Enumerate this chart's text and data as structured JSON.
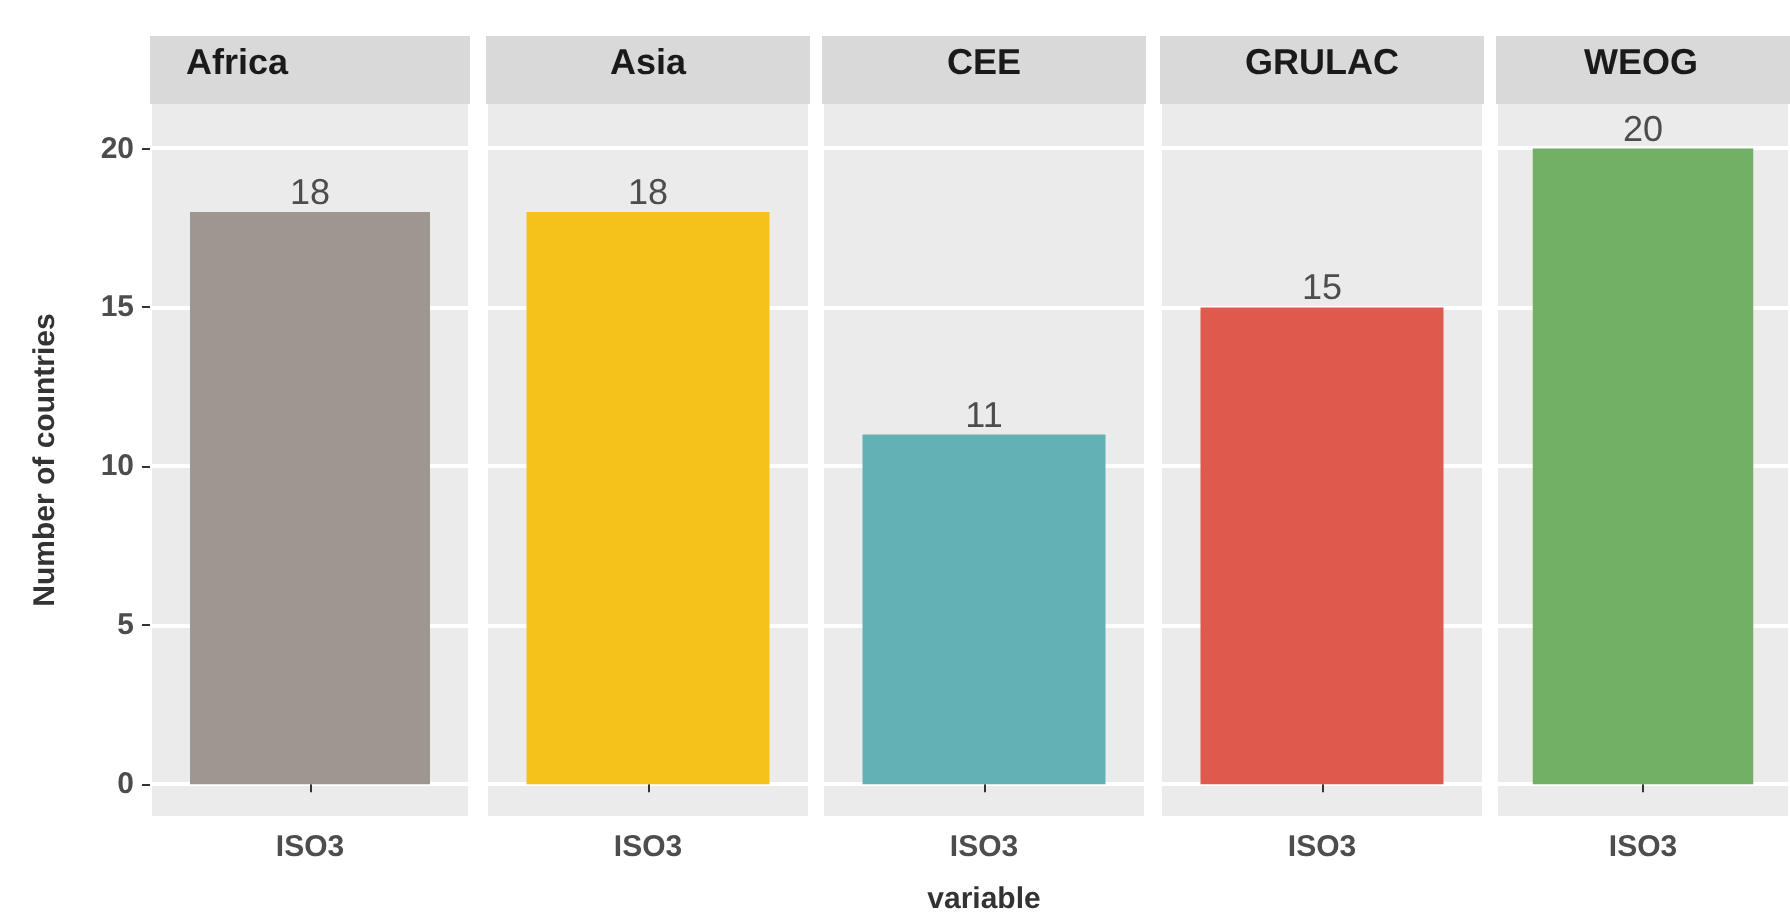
{
  "chart_data": [
    {
      "type": "bar",
      "title": "Africa",
      "categories": [
        "ISO3"
      ],
      "values": [
        18
      ],
      "color": "#9e9690",
      "ylabel": "Number of countries",
      "ylim": [
        -1,
        21.4
      ],
      "yticks": [
        0,
        5,
        10,
        15,
        20
      ],
      "grid": true,
      "data_labels": true
    },
    {
      "type": "bar",
      "title": "Asia",
      "categories": [
        "ISO3"
      ],
      "values": [
        18
      ],
      "color": "#f5c21b",
      "ylim": [
        -1,
        21.4
      ],
      "yticks": [
        0,
        5,
        10,
        15,
        20
      ],
      "grid": true,
      "data_labels": true,
      "tick_labels": "x"
    },
    {
      "type": "bar",
      "title": "CEE",
      "categories": [
        "ISO3"
      ],
      "values": [
        11
      ],
      "color": "#63b0b5",
      "xlabel": "variable",
      "ylim": [
        -1,
        21.4
      ],
      "yticks": [
        0,
        5,
        10,
        15,
        20
      ],
      "grid": true,
      "data_labels": true,
      "tick_labels": "x"
    },
    {
      "type": "bar",
      "title": "GRULAC",
      "categories": [
        "ISO3"
      ],
      "values": [
        15
      ],
      "color": "#e0594d",
      "ylim": [
        -1,
        21.4
      ],
      "yticks": [
        0,
        5,
        10,
        15,
        20
      ],
      "grid": true,
      "data_labels": true,
      "tick_labels": "x"
    },
    {
      "type": "bar",
      "title": "WEOG",
      "categories": [
        "ISO3"
      ],
      "values": [
        20
      ],
      "color": "#72b066",
      "ylim": [
        -1,
        21.4
      ],
      "yticks": [
        0,
        5,
        10,
        15,
        20
      ],
      "grid": true,
      "data_labels": true,
      "tick_labels": "x"
    }
  ]
}
